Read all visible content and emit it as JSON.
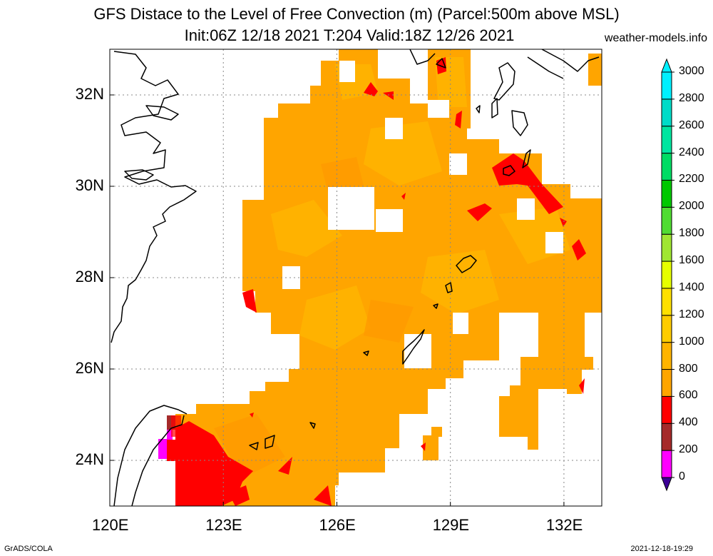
{
  "title_line1": "GFS Distace to the Level of Free Convection (m) (Parcel:500m above MSL)",
  "title_line2": "Init:06Z 12/18 2021 T:204 Valid:18Z 12/26 2021",
  "site": "weather-models.info",
  "credit": "GrADS/COLA",
  "timestamp": "2021-12-18-19:29",
  "map": {
    "lon_range": [
      120,
      133
    ],
    "lat_range": [
      23,
      33
    ],
    "lon_ticks": [
      "120E",
      "123E",
      "126E",
      "129E",
      "132E"
    ],
    "lat_ticks": [
      "24N",
      "26N",
      "28N",
      "30N",
      "32N"
    ],
    "grid": "dotted"
  },
  "colorbar": {
    "labels": [
      "0",
      "200",
      "400",
      "600",
      "800",
      "1000",
      "1200",
      "1400",
      "1600",
      "1800",
      "2000",
      "2200",
      "2400",
      "2600",
      "2800",
      "3000"
    ],
    "colors": [
      "#3c0096",
      "#ff00ff",
      "#a52a2a",
      "#ff0000",
      "#ffa500",
      "#ffb400",
      "#ffcc00",
      "#ffe000",
      "#e6ff00",
      "#a0e632",
      "#50dc32",
      "#00c800",
      "#00dc64",
      "#00e6a0",
      "#00dcc8",
      "#00f0ff"
    ],
    "min_color": "#3c0096",
    "max_color": "#00f0ff"
  }
}
